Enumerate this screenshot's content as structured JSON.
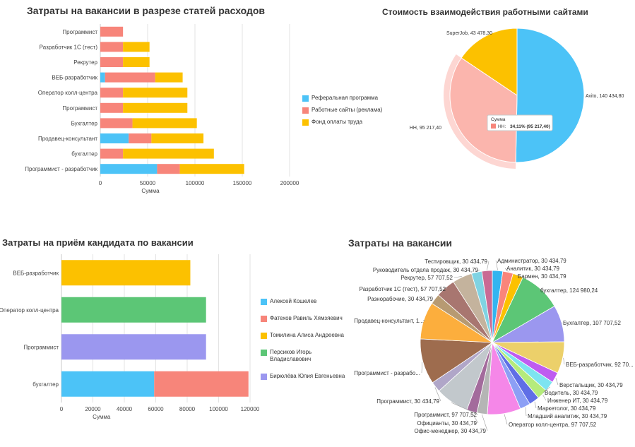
{
  "chart_data": [
    {
      "id": "expense_breakdown",
      "type": "bar",
      "orientation": "horizontal",
      "stacked": true,
      "title": "Затраты на вакансии в разрезе статей расходов",
      "xlabel": "Сумма",
      "ylabel": "",
      "xlim": [
        0,
        200000
      ],
      "xticks": [
        0,
        50000,
        100000,
        150000,
        200000
      ],
      "grid": true,
      "legend_position": "right",
      "categories": [
        "Программист",
        "Разработчик 1С (тест)",
        "Рекрутер",
        "ВЕБ-разработчик",
        "Оператор колл-центра",
        "Программист",
        "Бухгалтер",
        "Продавец-консультант",
        "бухгалтер",
        "Программист - разработчик"
      ],
      "series": [
        {
          "name": "Реферальная программа",
          "color": "#4cc3f7",
          "values": [
            0,
            0,
            0,
            5000,
            0,
            0,
            0,
            30000,
            0,
            60000
          ]
        },
        {
          "name": "Работные сайты (реклама)",
          "color": "#f7857a",
          "values": [
            24000,
            24000,
            24000,
            53000,
            24000,
            24000,
            34000,
            24000,
            24000,
            24000
          ]
        },
        {
          "name": "Фонд оплаты труда",
          "color": "#fcc100",
          "values": [
            0,
            28000,
            28000,
            29000,
            68000,
            68000,
            68000,
            55000,
            96000,
            68000
          ]
        }
      ]
    },
    {
      "id": "sites_cost",
      "type": "pie",
      "title": "Стоимость взаимодействия работными сайтами",
      "slices": [
        {
          "label": "Avito, 140 434,80",
          "name": "Avito",
          "value": 140434.8,
          "color": "#4cc3f7"
        },
        {
          "label": "HH, 95 217,40",
          "name": "HH",
          "value": 95217.4,
          "color": "#fbb5ad"
        },
        {
          "label": "SuperJob, 43 478,30",
          "name": "SuperJob",
          "value": 43478.3,
          "color": "#fcc100"
        }
      ],
      "tooltip": {
        "title": "Сумма",
        "series": "HH:",
        "value": "34,11% (95 217,40)"
      }
    },
    {
      "id": "candidate_cost",
      "type": "bar",
      "orientation": "horizontal",
      "stacked": true,
      "title": "Затраты на приём кандидата по вакансии",
      "xlabel": "Сумма",
      "ylabel": "",
      "xlim": [
        0,
        120000
      ],
      "xticks": [
        0,
        20000,
        40000,
        60000,
        80000,
        100000,
        120000
      ],
      "grid": true,
      "legend_position": "right",
      "categories": [
        "ВЕБ-разработчик",
        "Оператор колл-центра",
        "Программист",
        "бухгалтер"
      ],
      "series": [
        {
          "name": "Алексей Кошелев",
          "color": "#4cc3f7",
          "values": [
            0,
            0,
            0,
            59000
          ]
        },
        {
          "name": "Фатехов Равиль Хямзяевич",
          "color": "#f7857a",
          "values": [
            0,
            0,
            0,
            60000
          ]
        },
        {
          "name": "Томилина Алиса Андреевна",
          "color": "#fcc100",
          "values": [
            82000,
            0,
            0,
            0
          ]
        },
        {
          "name": "Персиков Игорь Владиславович",
          "color": "#5cc676",
          "values": [
            0,
            92000,
            0,
            0
          ]
        },
        {
          "name": "Бирюлёва Юлия Евгеньевна",
          "color": "#9b97ef",
          "values": [
            0,
            0,
            92000,
            0
          ]
        }
      ]
    },
    {
      "id": "vacancy_costs",
      "type": "pie",
      "title": "Затраты на вакансии",
      "slices": [
        {
          "label": "Администратор, 30 434,79",
          "value": 30434.79,
          "color": "#33b5f0"
        },
        {
          "label": "Аналитик, 30 434,79",
          "value": 30434.79,
          "color": "#f9857a"
        },
        {
          "label": "Бармен, 30 434,79",
          "value": 30434.79,
          "color": "#fcc100"
        },
        {
          "label": "бухгалтер, 124 980,24",
          "value": 124980.24,
          "color": "#5cc676"
        },
        {
          "label": "Бухгалтер, 107 707,52",
          "value": 107707.52,
          "color": "#9b97ef"
        },
        {
          "label": "ВЕБ-разработчик, 92 70...",
          "value": 92707.52,
          "color": "#ecd06a"
        },
        {
          "label": "Верстальщик, 30 434,79",
          "value": 30434.79,
          "color": "#bf5cf0"
        },
        {
          "label": "Водитель, 30 434,79",
          "value": 30434.79,
          "color": "#7de4f0"
        },
        {
          "label": "Инженер ИТ, 30 434,79",
          "value": 30434.79,
          "color": "#b5eb7c"
        },
        {
          "label": "Маркетолог, 30 434,79",
          "value": 30434.79,
          "color": "#5f6ee6"
        },
        {
          "label": "Младший аналитик, 30 434,79",
          "value": 30434.79,
          "color": "#8c9ff5"
        },
        {
          "label": "Оператор колл-центра, 97 707,52",
          "value": 97707.52,
          "color": "#f587e8"
        },
        {
          "label": "Офис-менеджер, 30 434,79",
          "value": 30434.79,
          "color": "#b5b5b5"
        },
        {
          "label": "Официанты, 30 434,79",
          "value": 30434.79,
          "color": "#a36b9c"
        },
        {
          "label": "Программист, 97 707,52",
          "value": 97707.52,
          "color": "#c2c8cc"
        },
        {
          "label": "Программист, 30 434,79",
          "value": 30434.79,
          "color": "#b0a6c8"
        },
        {
          "label": "Программист - разрабо...",
          "value": 133000,
          "color": "#9e6c4e"
        },
        {
          "label": "Продавец-консультант, 1...",
          "value": 109000,
          "color": "#fcae3d"
        },
        {
          "label": "Разнорабочие, 30 434,79",
          "value": 30434.79,
          "color": "#b79a72"
        },
        {
          "label": "Разработчик 1С (тест), 57 707,52",
          "value": 57707.52,
          "color": "#a87670"
        },
        {
          "label": "Рекрутер, 57 707,52",
          "value": 57707.52,
          "color": "#c4b39d"
        },
        {
          "label": "Руководитель отдела продаж, 30 434,79",
          "value": 30434.79,
          "color": "#7fd3e3"
        },
        {
          "label": "Тестировщик, 30 434,79",
          "value": 30434.79,
          "color": "#c96a94"
        }
      ]
    }
  ]
}
